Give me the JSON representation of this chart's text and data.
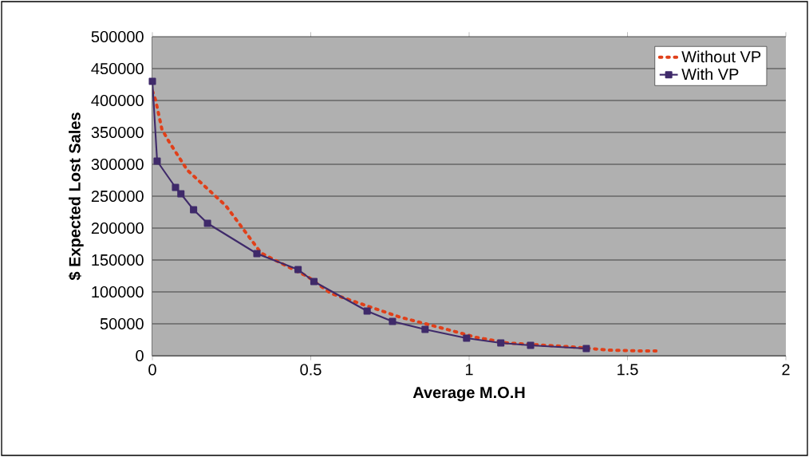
{
  "chart_data": {
    "type": "line",
    "xlabel": "Average M.O.H",
    "ylabel": "$ Expected Lost Sales",
    "xlim": [
      0,
      2
    ],
    "ylim": [
      0,
      500000
    ],
    "xticks": [
      0,
      0.5,
      1,
      1.5,
      2
    ],
    "yticks": [
      0,
      50000,
      100000,
      150000,
      200000,
      250000,
      300000,
      350000,
      400000,
      450000,
      500000
    ],
    "grid": "y",
    "legend": "top right",
    "series": [
      {
        "name": "Without VP",
        "color": "#e0401a",
        "line_style": "dotted",
        "marker": "none",
        "x": [
          0,
          0.01,
          0.03,
          0.053,
          0.11,
          0.232,
          0.343,
          0.49,
          0.564,
          0.778,
          0.947,
          1.02,
          1.12,
          1.325,
          1.44,
          1.54,
          1.59
        ],
        "values": [
          415000,
          401000,
          355000,
          335000,
          291000,
          235000,
          161000,
          124000,
          97500,
          61000,
          39000,
          29000,
          20000,
          13750,
          8750,
          7500,
          7500
        ]
      },
      {
        "name": "With VP",
        "color": "#3f2a6a",
        "line_style": "solid",
        "marker": "square",
        "x": [
          0,
          0.015,
          0.073,
          0.09,
          0.13,
          0.174,
          0.33,
          0.46,
          0.51,
          0.678,
          0.758,
          0.861,
          0.992,
          1.1,
          1.194,
          1.37
        ],
        "values": [
          430000,
          305000,
          263750,
          253750,
          228750,
          207500,
          160000,
          135000,
          116250,
          70000,
          53750,
          41250,
          27500,
          20000,
          16250,
          11250
        ]
      }
    ]
  }
}
